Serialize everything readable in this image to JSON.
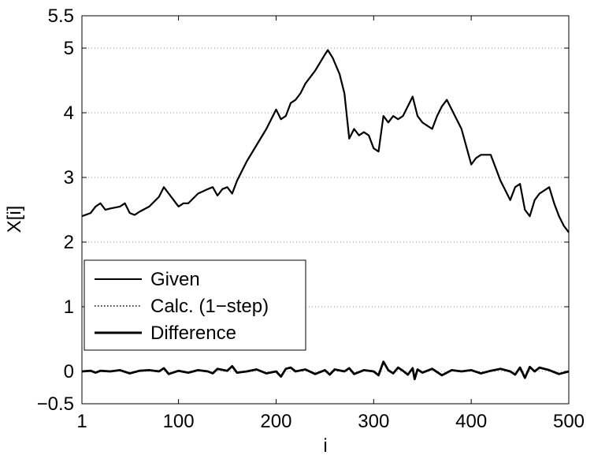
{
  "chart_data": {
    "type": "line",
    "title": "",
    "xlabel": "i",
    "ylabel": "X[i]",
    "xlim": [
      1,
      500
    ],
    "ylim": [
      -0.5,
      5.5
    ],
    "grid": "horizontal dotted",
    "legend_placement": "lower-left",
    "xticks": [
      {
        "value": 1,
        "label": "1"
      },
      {
        "value": 100,
        "label": "100"
      },
      {
        "value": 200,
        "label": "200"
      },
      {
        "value": 300,
        "label": "300"
      },
      {
        "value": 400,
        "label": "400"
      },
      {
        "value": 500,
        "label": "500"
      }
    ],
    "yticks": [
      {
        "value": -0.5,
        "label": "−0.5"
      },
      {
        "value": 0,
        "label": "0"
      },
      {
        "value": 1,
        "label": "1"
      },
      {
        "value": 2,
        "label": "2"
      },
      {
        "value": 3,
        "label": "3"
      },
      {
        "value": 4,
        "label": "4"
      },
      {
        "value": 5,
        "label": "5"
      },
      {
        "value": 5.5,
        "label": "5.5"
      }
    ],
    "series": [
      {
        "name": "Given",
        "style": "solid",
        "color": "#000000",
        "x": [
          1,
          10,
          15,
          20,
          25,
          30,
          40,
          45,
          50,
          55,
          60,
          70,
          80,
          85,
          90,
          95,
          100,
          105,
          110,
          120,
          130,
          135,
          140,
          145,
          150,
          155,
          160,
          170,
          180,
          190,
          200,
          205,
          210,
          215,
          220,
          225,
          230,
          240,
          250,
          253,
          258,
          265,
          270,
          275,
          280,
          285,
          290,
          295,
          300,
          305,
          310,
          315,
          320,
          325,
          330,
          335,
          340,
          345,
          350,
          355,
          360,
          365,
          370,
          375,
          380,
          390,
          400,
          405,
          410,
          415,
          420,
          425,
          430,
          440,
          445,
          450,
          455,
          460,
          465,
          470,
          475,
          480,
          485,
          490,
          495,
          500
        ],
        "values": [
          2.4,
          2.45,
          2.55,
          2.6,
          2.5,
          2.52,
          2.55,
          2.6,
          2.45,
          2.42,
          2.47,
          2.55,
          2.7,
          2.85,
          2.75,
          2.65,
          2.55,
          2.6,
          2.6,
          2.75,
          2.82,
          2.85,
          2.72,
          2.82,
          2.85,
          2.75,
          2.95,
          3.25,
          3.5,
          3.75,
          4.05,
          3.9,
          3.95,
          4.15,
          4.2,
          4.3,
          4.45,
          4.65,
          4.9,
          4.97,
          4.85,
          4.6,
          4.3,
          3.6,
          3.75,
          3.65,
          3.7,
          3.65,
          3.45,
          3.4,
          3.95,
          3.85,
          3.95,
          3.9,
          3.95,
          4.1,
          4.25,
          3.95,
          3.85,
          3.8,
          3.75,
          3.95,
          4.1,
          4.2,
          4.05,
          3.75,
          3.2,
          3.3,
          3.35,
          3.35,
          3.35,
          3.15,
          2.95,
          2.65,
          2.85,
          2.9,
          2.5,
          2.4,
          2.65,
          2.75,
          2.8,
          2.85,
          2.6,
          2.4,
          2.25,
          2.15
        ]
      },
      {
        "name": "Calc. (1−step)",
        "style": "dotted",
        "color": "#000000",
        "x": [
          1,
          10,
          15,
          20,
          25,
          30,
          40,
          45,
          50,
          55,
          60,
          70,
          80,
          85,
          90,
          95,
          100,
          105,
          110,
          120,
          130,
          135,
          140,
          145,
          150,
          155,
          160,
          170,
          180,
          190,
          200,
          205,
          210,
          215,
          220,
          225,
          230,
          240,
          250,
          253,
          258,
          265,
          270,
          275,
          280,
          285,
          290,
          295,
          300,
          305,
          310,
          315,
          320,
          325,
          330,
          335,
          340,
          345,
          350,
          355,
          360,
          365,
          370,
          375,
          380,
          390,
          400,
          405,
          410,
          415,
          420,
          425,
          430,
          440,
          445,
          450,
          455,
          460,
          465,
          470,
          475,
          480,
          485,
          490,
          495,
          500
        ],
        "values": [
          2.4,
          2.45,
          2.55,
          2.6,
          2.5,
          2.52,
          2.55,
          2.6,
          2.45,
          2.42,
          2.47,
          2.55,
          2.7,
          2.85,
          2.75,
          2.65,
          2.55,
          2.6,
          2.6,
          2.75,
          2.82,
          2.85,
          2.72,
          2.82,
          2.85,
          2.75,
          2.95,
          3.25,
          3.5,
          3.75,
          4.05,
          3.9,
          3.95,
          4.15,
          4.2,
          4.3,
          4.45,
          4.65,
          4.9,
          4.97,
          4.85,
          4.6,
          4.3,
          3.6,
          3.75,
          3.65,
          3.7,
          3.65,
          3.45,
          3.4,
          3.95,
          3.85,
          3.95,
          3.9,
          3.95,
          4.1,
          4.25,
          3.95,
          3.85,
          3.8,
          3.75,
          3.95,
          4.1,
          4.2,
          4.05,
          3.75,
          3.2,
          3.3,
          3.35,
          3.35,
          3.35,
          3.15,
          2.95,
          2.65,
          2.85,
          2.9,
          2.5,
          2.4,
          2.65,
          2.75,
          2.8,
          2.85,
          2.6,
          2.4,
          2.25,
          2.15
        ]
      },
      {
        "name": "Difference",
        "style": "solid-thick",
        "color": "#000000",
        "x": [
          1,
          10,
          15,
          20,
          30,
          40,
          50,
          60,
          70,
          80,
          85,
          90,
          100,
          110,
          120,
          130,
          135,
          140,
          150,
          155,
          160,
          170,
          180,
          190,
          200,
          205,
          210,
          215,
          220,
          230,
          240,
          250,
          255,
          260,
          270,
          275,
          280,
          290,
          300,
          305,
          310,
          315,
          320,
          325,
          330,
          335,
          340,
          342,
          345,
          350,
          360,
          370,
          380,
          390,
          400,
          410,
          420,
          430,
          440,
          445,
          450,
          455,
          460,
          465,
          470,
          480,
          490,
          500
        ],
        "values": [
          0.0,
          0.01,
          -0.02,
          0.01,
          0.0,
          0.02,
          -0.03,
          0.01,
          0.02,
          0.0,
          0.05,
          -0.04,
          0.01,
          -0.02,
          0.02,
          0.0,
          -0.03,
          0.04,
          0.01,
          0.08,
          -0.02,
          0.0,
          0.03,
          -0.03,
          0.0,
          -0.08,
          0.04,
          0.06,
          0.0,
          0.03,
          -0.04,
          0.02,
          -0.05,
          0.03,
          0.0,
          0.05,
          -0.04,
          0.02,
          0.0,
          -0.06,
          0.15,
          0.02,
          -0.03,
          0.06,
          0.01,
          -0.05,
          0.05,
          -0.12,
          0.03,
          -0.02,
          0.04,
          -0.06,
          0.02,
          0.0,
          0.02,
          -0.03,
          0.01,
          0.04,
          0.0,
          -0.05,
          0.06,
          -0.1,
          0.07,
          0.0,
          0.06,
          0.02,
          -0.04,
          0.0
        ]
      }
    ]
  }
}
